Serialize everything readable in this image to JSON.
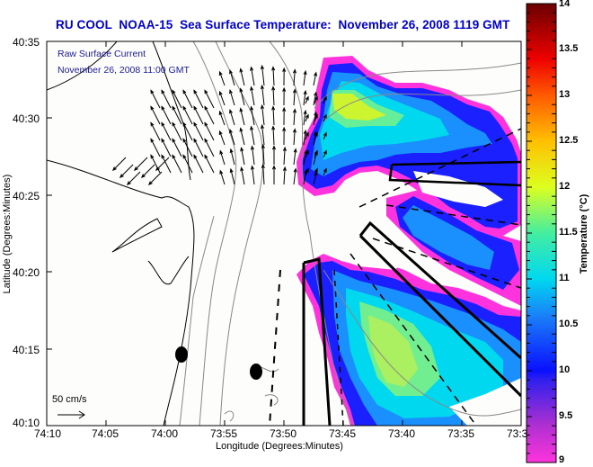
{
  "title": "RU COOL  NOAA-15  Sea Surface Temperature:  November 26, 2008 1119 GMT",
  "current_overlay": {
    "line1": "Raw Surface Current",
    "line2": "November 26, 2008 11:00 GMT",
    "scale_label": "50 cm/s"
  },
  "axes": {
    "xlabel": "Longitude (Degrees:Minutes)",
    "ylabel": "Latitude (Degrees:Minutes)",
    "x_ticks": [
      "74:10",
      "74:05",
      "74:00",
      "73:55",
      "73:50",
      "73:45",
      "73:40",
      "73:35",
      "73:3"
    ],
    "y_ticks": [
      "40:35",
      "40:30",
      "40:25",
      "40:20",
      "40:15",
      "40:10"
    ]
  },
  "colorbar": {
    "label": "Temperature (°C)",
    "min": 9,
    "max": 14,
    "ticks": [
      "14",
      "13.5",
      "13",
      "12.5",
      "12",
      "11.5",
      "11",
      "10.5",
      "10",
      "9.5",
      "9"
    ],
    "colors": [
      "#ff33cc",
      "#9933cc",
      "#1a1aff",
      "#0077ff",
      "#00ccee",
      "#44eeaa",
      "#ccff22",
      "#ffdd00",
      "#ff8800",
      "#ff2200",
      "#700000"
    ]
  },
  "colors": {
    "title": "#0000cc",
    "overlay_text": "#1a1aa0",
    "coast": "#000000",
    "bathymetry": "#888888"
  }
}
